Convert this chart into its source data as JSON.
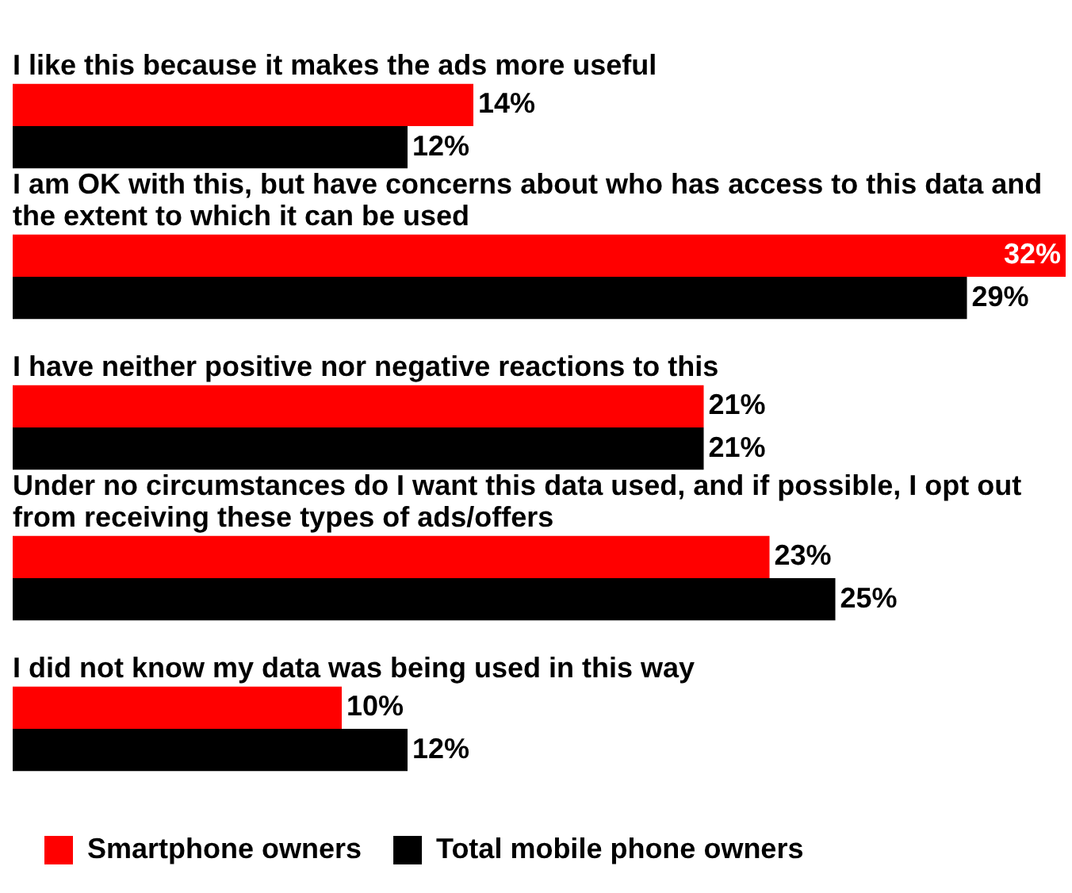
{
  "chart_data": {
    "type": "bar",
    "orientation": "horizontal",
    "categories": [
      "I like this because it makes the ads more useful",
      "I am OK with this, but have concerns about who has access to this data and the extent to which it can be used",
      "I have neither positive nor negative reactions to this",
      "Under no circumstances do I want this data used, and if possible, I opt out from receiving these types of ads/offers",
      "I did not know my data was being used in this way"
    ],
    "series": [
      {
        "name": "Smartphone owners",
        "color": "#ff0000",
        "values": [
          14,
          32,
          21,
          23,
          10
        ],
        "value_labels": [
          "14%",
          "32%",
          "21%",
          "23%",
          "10%"
        ]
      },
      {
        "name": "Total mobile phone owners",
        "color": "#000000",
        "values": [
          12,
          29,
          21,
          25,
          12
        ],
        "value_labels": [
          "12%",
          "29%",
          "21%",
          "25%",
          "12%"
        ]
      }
    ],
    "legend": "bottom"
  }
}
